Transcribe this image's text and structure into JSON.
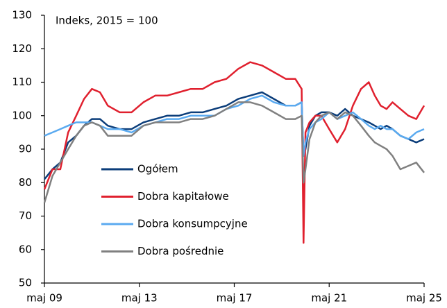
{
  "chart_data": {
    "type": "line",
    "annotation": "Indeks, 2015 = 100",
    "x": [
      2009.33,
      2009.67,
      2010.0,
      2010.33,
      2010.67,
      2011.0,
      2011.33,
      2011.67,
      2012.0,
      2012.5,
      2013.0,
      2013.5,
      2014.0,
      2014.5,
      2015.0,
      2015.5,
      2016.0,
      2016.5,
      2017.0,
      2017.5,
      2018.0,
      2018.5,
      2019.0,
      2019.5,
      2019.9,
      2020.17,
      2020.25,
      2020.33,
      2020.5,
      2020.75,
      2021.0,
      2021.33,
      2021.67,
      2022.0,
      2022.33,
      2022.67,
      2023.0,
      2023.25,
      2023.5,
      2023.75,
      2024.0,
      2024.33,
      2024.67,
      2025.0,
      2025.33
    ],
    "series": [
      {
        "name": "Ogółem",
        "color": "#0b3d7a",
        "values": [
          81,
          84,
          86,
          92,
          94,
          97,
          99,
          99,
          97,
          96,
          96,
          98,
          99,
          100,
          100,
          101,
          101,
          102,
          103,
          105,
          106,
          107,
          105,
          103,
          103,
          104,
          88,
          90,
          97,
          100,
          101,
          101,
          100,
          102,
          100,
          99,
          98,
          97,
          96,
          97,
          96,
          94,
          93,
          92,
          93
        ]
      },
      {
        "name": "Dobra kapitałowe",
        "color": "#e0202e",
        "values": [
          78,
          84,
          84,
          95,
          100,
          105,
          108,
          107,
          103,
          101,
          101,
          104,
          106,
          106,
          107,
          108,
          108,
          110,
          111,
          114,
          116,
          115,
          113,
          111,
          111,
          108,
          62,
          95,
          98,
          100,
          100,
          96,
          92,
          96,
          103,
          108,
          110,
          106,
          103,
          102,
          104,
          102,
          100,
          99,
          103
        ]
      },
      {
        "name": "Dobra konsumpcyjne",
        "color": "#5aaaf0",
        "values": [
          94,
          95,
          96,
          97,
          98,
          98,
          98,
          97,
          96,
          96,
          95,
          97,
          98,
          99,
          99,
          100,
          100,
          100,
          102,
          103,
          105,
          106,
          104,
          103,
          103,
          104,
          88,
          92,
          96,
          98,
          99,
          101,
          99,
          100,
          101,
          99,
          97,
          96,
          97,
          96,
          96,
          94,
          93,
          95,
          96
        ]
      },
      {
        "name": "Dobra pośrednie",
        "color": "#808080",
        "values": [
          74,
          82,
          86,
          90,
          94,
          97,
          98,
          97,
          94,
          94,
          94,
          97,
          98,
          98,
          98,
          99,
          99,
          100,
          102,
          104,
          104,
          103,
          101,
          99,
          99,
          100,
          80,
          84,
          93,
          98,
          100,
          101,
          99,
          101,
          100,
          97,
          94,
          92,
          91,
          90,
          88,
          84,
          85,
          86,
          83
        ]
      }
    ],
    "xlim": [
      2009.33,
      2025.33
    ],
    "xticks": [
      {
        "value": 2009.33,
        "label": "maj 09"
      },
      {
        "value": 2013.33,
        "label": "maj 13"
      },
      {
        "value": 2017.33,
        "label": "maj 17"
      },
      {
        "value": 2021.33,
        "label": "maj 21"
      },
      {
        "value": 2025.33,
        "label": "maj 25"
      }
    ],
    "ylim": [
      50,
      130
    ],
    "yticks": [
      50,
      60,
      70,
      80,
      90,
      100,
      110,
      120,
      130
    ],
    "legend": "inside"
  }
}
